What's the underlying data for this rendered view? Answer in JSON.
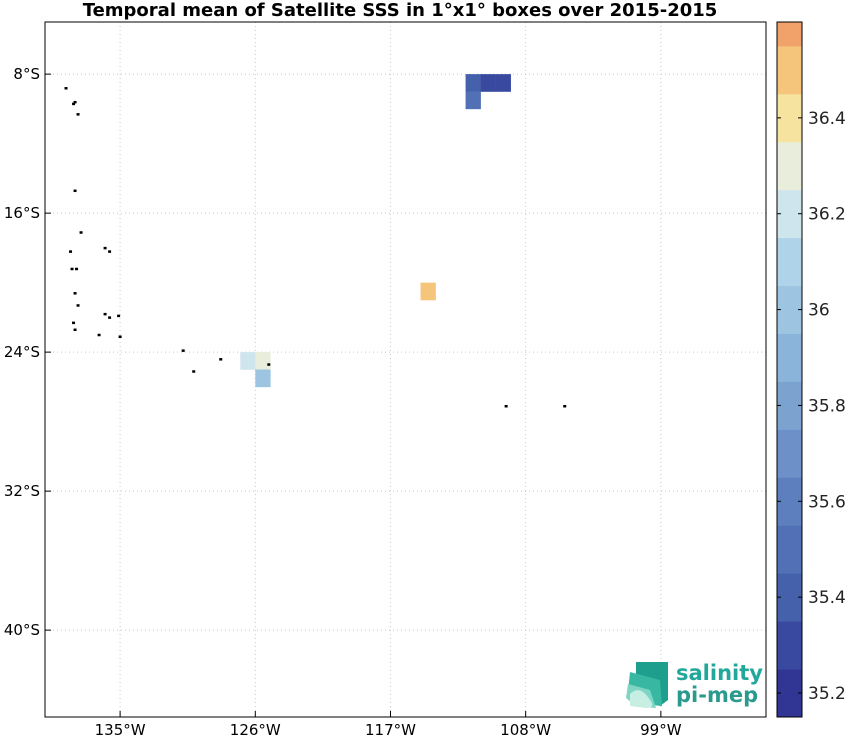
{
  "title": "Temporal mean of Satellite SSS in 1°x1° boxes over 2015-2015",
  "map": {
    "lon_range": [
      -140,
      -92
    ],
    "lat_range": [
      -45,
      -5
    ],
    "x_ticks": [
      {
        "value": -135,
        "label": "135°W"
      },
      {
        "value": -126,
        "label": "126°W"
      },
      {
        "value": -117,
        "label": "117°W"
      },
      {
        "value": -108,
        "label": "108°W"
      },
      {
        "value": -99,
        "label": "99°W"
      }
    ],
    "y_ticks": [
      {
        "value": -8,
        "label": "8°S"
      },
      {
        "value": -16,
        "label": "16°S"
      },
      {
        "value": -24,
        "label": "24°S"
      },
      {
        "value": -32,
        "label": "32°S"
      },
      {
        "value": -40,
        "label": "40°S"
      }
    ],
    "grid": true,
    "cells": [
      {
        "lon": -111.5,
        "lat": -8.5,
        "sss": 35.35
      },
      {
        "lon": -110.5,
        "lat": -8.5,
        "sss": 35.25
      },
      {
        "lon": -109.5,
        "lat": -8.5,
        "sss": 35.25
      },
      {
        "lon": -111.5,
        "lat": -9.5,
        "sss": 35.45
      },
      {
        "lon": -114.5,
        "lat": -20.5,
        "sss": 36.55
      },
      {
        "lon": -126.5,
        "lat": -24.5,
        "sss": 36.15
      },
      {
        "lon": -125.5,
        "lat": -24.5,
        "sss": 36.25
      },
      {
        "lon": -125.5,
        "lat": -25.5,
        "sss": 36.05
      }
    ],
    "islands": [
      {
        "lon": -138.6,
        "lat": -8.8
      },
      {
        "lon": -138.1,
        "lat": -9.7
      },
      {
        "lon": -138.0,
        "lat": -9.6
      },
      {
        "lon": -137.8,
        "lat": -10.3
      },
      {
        "lon": -138.0,
        "lat": -14.7
      },
      {
        "lon": -137.6,
        "lat": -17.1
      },
      {
        "lon": -136.0,
        "lat": -18.0
      },
      {
        "lon": -135.7,
        "lat": -18.2
      },
      {
        "lon": -138.3,
        "lat": -18.2
      },
      {
        "lon": -137.9,
        "lat": -19.2
      },
      {
        "lon": -138.2,
        "lat": -19.2
      },
      {
        "lon": -138.0,
        "lat": -20.6
      },
      {
        "lon": -137.8,
        "lat": -21.3
      },
      {
        "lon": -136.0,
        "lat": -21.8
      },
      {
        "lon": -135.7,
        "lat": -22.0
      },
      {
        "lon": -135.1,
        "lat": -21.9
      },
      {
        "lon": -138.1,
        "lat": -22.3
      },
      {
        "lon": -138.0,
        "lat": -22.7
      },
      {
        "lon": -136.4,
        "lat": -23.0
      },
      {
        "lon": -135.0,
        "lat": -23.1
      },
      {
        "lon": -130.8,
        "lat": -23.9
      },
      {
        "lon": -128.3,
        "lat": -24.4
      },
      {
        "lon": -130.1,
        "lat": -25.1
      },
      {
        "lon": -105.4,
        "lat": -27.1
      },
      {
        "lon": -109.3,
        "lat": -27.1
      },
      {
        "lon": -125.1,
        "lat": -24.7
      }
    ]
  },
  "colorbar": {
    "min": 35.15,
    "max": 36.6,
    "step": 0.1,
    "colors": [
      "#313695",
      "#3a49a0",
      "#4661ac",
      "#5270b6",
      "#5e7fbe",
      "#6d90c8",
      "#7ca3d0",
      "#8ab4da",
      "#9dc5e1",
      "#afd3e8",
      "#cfe5ee",
      "#e8eedb",
      "#f6e3a0",
      "#f4c57b",
      "#f0a26a",
      "#e97a4f",
      "#e05c3b",
      "#d43f31",
      "#c9292a",
      "#b81c2a",
      "#a50026"
    ],
    "ticks": [
      {
        "value": 35.2,
        "label": "35.2"
      },
      {
        "value": 35.4,
        "label": "35.4"
      },
      {
        "value": 35.6,
        "label": "35.6"
      },
      {
        "value": 35.8,
        "label": "35.8"
      },
      {
        "value": 36.0,
        "label": "36"
      },
      {
        "value": 36.2,
        "label": "36.2"
      },
      {
        "value": 36.4,
        "label": "36.4"
      }
    ]
  },
  "logo": {
    "line1": "salinity",
    "line2": "pi-mep",
    "color1": "#22a89a",
    "color2": "#2a9a8e"
  }
}
